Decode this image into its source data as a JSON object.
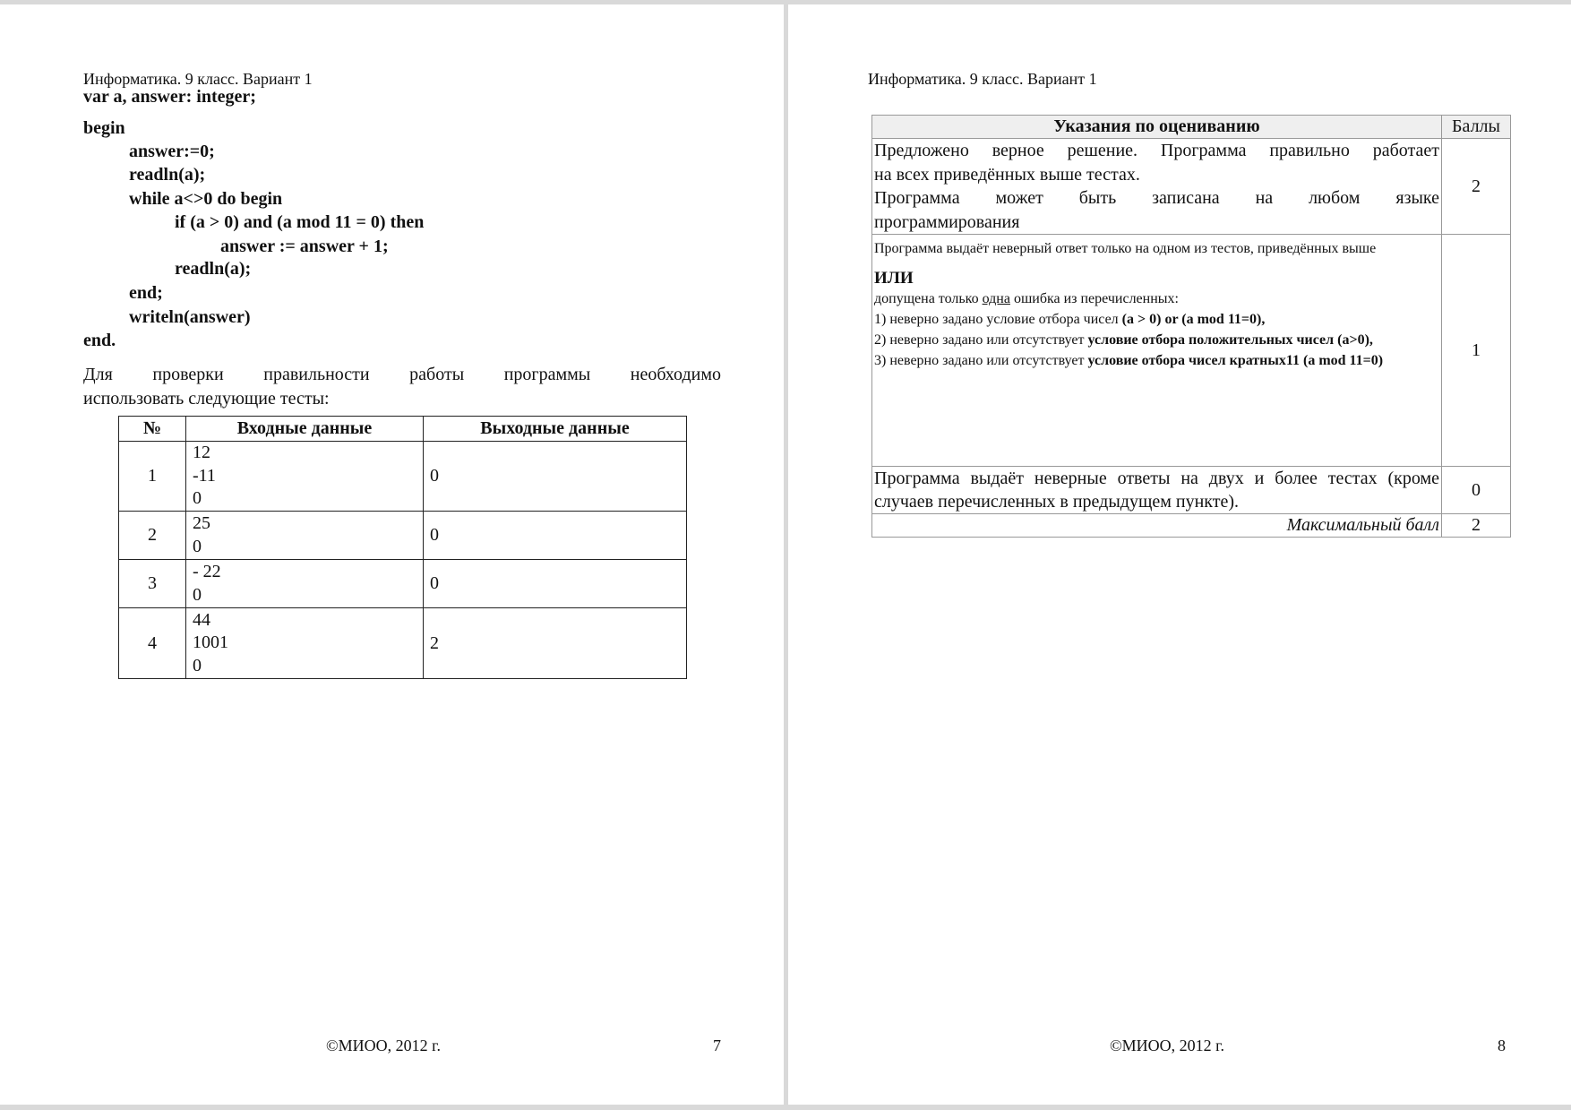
{
  "left_page": {
    "header": "Информатика. 9 класс. Вариант 1",
    "code": [
      {
        "text": "var a, answer: integer;",
        "indent": 0
      },
      {
        "text": "begin",
        "indent": 0
      },
      {
        "text": "answer:=0;",
        "indent": 1
      },
      {
        "text": "readln(a);",
        "indent": 1
      },
      {
        "text": "while a<>0 do begin",
        "indent": 1
      },
      {
        "text": "if (a > 0) and (a mod 11 = 0) then",
        "indent": 2
      },
      {
        "text": "answer := answer + 1;",
        "indent": 3
      },
      {
        "text": "readln(a);",
        "indent": 2
      },
      {
        "text": "end;",
        "indent": 1
      },
      {
        "text": "writeln(answer)",
        "indent": 1
      },
      {
        "text": "end.",
        "indent": 0
      }
    ],
    "paragraph": [
      "Для проверки правильности работы программы необходимо",
      "использовать следующие тесты:"
    ],
    "tests_table": {
      "headers": [
        "№",
        "Входные данные",
        "Выходные данные"
      ],
      "rows": [
        {
          "num": "1",
          "input": [
            "12",
            "-11",
            "0"
          ],
          "output": "0"
        },
        {
          "num": "2",
          "input": [
            "25",
            "0"
          ],
          "output": "0"
        },
        {
          "num": "3",
          "input": [
            "- 22",
            "0"
          ],
          "output": "0"
        },
        {
          "num": "4",
          "input": [
            "44",
            "1001",
            "0"
          ],
          "output": "2"
        }
      ]
    },
    "footer": {
      "copyright": "©МИОО, 2012 г.",
      "page": "7"
    }
  },
  "right_page": {
    "header": "Информатика. 9 класс. Вариант 1",
    "grading_table": {
      "headers": [
        "Указания по оцениванию",
        "Баллы"
      ],
      "row1": {
        "lines": [
          "Предложено верное решение. Программа правильно работает",
          "на всех приведённых выше тестах.",
          "Программа может быть записана на любом языке",
          "программирования"
        ],
        "points": "2"
      },
      "row2": {
        "line1": "Программа выдаёт неверный ответ только на одном из тестов, приведённых выше",
        "ili": "ИЛИ",
        "intro_a": "допущена только ",
        "intro_u": "одна",
        "intro_b": " ошибка из перечисленных:",
        "item1_a": "1) неверно задано условие отбора чисел ",
        "item1_b": "(a > 0) or (a mod 11=0),",
        "item2_a": "2) неверно задано или отсутствует ",
        "item2_b": "условие отбора положительных чисел (a>0)",
        ",": ",",
        "item3_a": "3) неверно задано или отсутствует ",
        "item3_b": "условие отбора чисел кратных11 (a mod 11=0)",
        "points": "1"
      },
      "row3": {
        "text": "Программа выдаёт неверные ответы на двух и более тестах (кроме случаев перечисленных в предыдущем пункте).",
        "points": "0"
      },
      "row4": {
        "text": "Максимальный балл",
        "points": "2"
      }
    },
    "footer": {
      "copyright": "©МИОО, 2012 г.",
      "page": "8"
    }
  }
}
